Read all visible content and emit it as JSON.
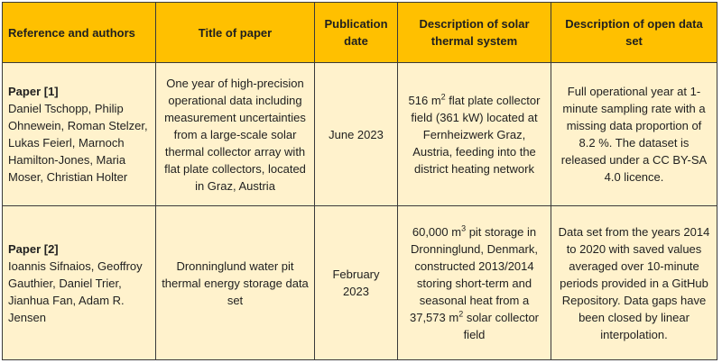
{
  "headers": [
    "Reference and authors",
    "Title of paper",
    "Publication date",
    "Description of solar thermal system",
    "Description of open data set"
  ],
  "rows": [
    {
      "paper_id": "Paper [1]",
      "authors": "Daniel Tschopp, Philip Ohnewein, Roman Stelzer, Lukas Feierl, Marnoch Hamilton-Jones, Maria Moser, Christian Holter",
      "title": "One year of high-precision operational data including measurement uncertainties from a large-scale solar thermal collector array with flat plate collectors, located in Graz, Austria",
      "date": "June 2023",
      "system": {
        "pre": "516 m",
        "sup": "2",
        "post": " flat plate collector field (361 kW) located at Fernheizwerk Graz, Austria, feeding into the district heating network"
      },
      "dataset": "Full operational year at 1-minute sampling rate with a missing data proportion of 8.2 %. The dataset is released under a CC BY-SA 4.0 licence."
    },
    {
      "paper_id": "Paper [2]",
      "authors": "Ioannis Sifnaios, Geoffroy Gauthier, Daniel Trier, Jianhua Fan, Adam R. Jensen",
      "title": "Dronninglund water pit thermal energy storage data set",
      "date": "February 2023",
      "system": {
        "pre": "60,000 m",
        "sup": "3",
        "mid": " pit storage in Dronninglund, Denmark, constructed 2013/2014 storing short-term and seasonal heat from a 37,573 m",
        "sup2": "2",
        "post": " solar collector field"
      },
      "dataset": "Data set from the years 2014 to 2020 with saved values averaged over 10-minute periods provided in a GitHub Repository. Data gaps have been closed by linear interpolation."
    }
  ],
  "colors": {
    "header_bg": "#ffc000",
    "cell_bg": "#fff2cc",
    "border": "#3a3a3a"
  }
}
